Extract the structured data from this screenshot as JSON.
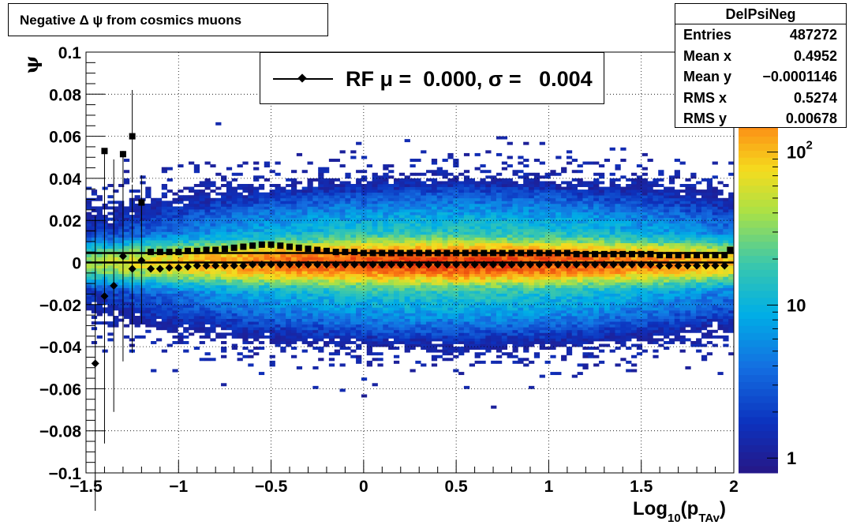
{
  "title_box": {
    "text": "Negative Δ ψ from cosmics muons"
  },
  "stats": {
    "name": "DelPsiNeg",
    "rows": [
      {
        "label": "Entries",
        "value": "487272"
      },
      {
        "label": "Mean x",
        "value": "0.4952"
      },
      {
        "label": "Mean y",
        "value": "−0.0001146"
      },
      {
        "label": "RMS x",
        "value": "0.5274"
      },
      {
        "label": "RMS y",
        "value": "0.00678"
      }
    ]
  },
  "legend": {
    "text": "RF μ =  0.000, σ =   0.004"
  },
  "chart_data": {
    "type": "heatmap",
    "xlabel": "Log",
    "xlabel_sub": "10",
    "xlabel_paren_open": "(p",
    "xlabel_sub2": "TAv",
    "xlabel_paren_close": ")",
    "ylabel": "ψ",
    "xlim": [
      -1.5,
      2
    ],
    "ylim": [
      -0.1,
      0.1
    ],
    "x_ticks": [
      -1.5,
      -1,
      -0.5,
      0,
      0.5,
      1,
      1.5,
      2
    ],
    "x_tick_labels": [
      "−1.5",
      "−1",
      "−0.5",
      "0",
      "0.5",
      "1",
      "1.5",
      "2"
    ],
    "y_ticks": [
      -0.1,
      -0.08,
      -0.06,
      -0.04,
      -0.02,
      0,
      0.02,
      0.04,
      0.06,
      0.08,
      0.1
    ],
    "y_tick_labels": [
      "−0.1",
      "−0.08",
      "−0.06",
      "−0.04",
      "−0.02",
      "0",
      "0.02",
      "0.04",
      "0.06",
      "0.08",
      "0.1"
    ],
    "grid": true,
    "log_z": true,
    "zlim": [
      0.8,
      450
    ],
    "z_ticks": [
      1,
      10,
      100
    ],
    "z_tick_labels": [
      {
        "base": "1",
        "exp": ""
      },
      {
        "base": "10",
        "exp": ""
      },
      {
        "base": "10",
        "exp": "2"
      }
    ],
    "heatmap_profile": {
      "x_center": 0.5,
      "x_width": 0.95,
      "peak_counts": 320,
      "y_sigma_core": 0.0045,
      "y_sigma_tail": 0.016,
      "tail_fraction": 0.07
    },
    "series": [
      {
        "name": "RF",
        "marker": "diamond",
        "x": [
          -1.45,
          -1.4,
          -1.35,
          -1.3,
          -1.25,
          -1.2,
          -1.15,
          -1.1,
          -1.05,
          -1.0,
          -0.95,
          -0.9,
          -0.85,
          -0.8,
          -0.75,
          -0.7,
          -0.65,
          -0.6,
          -0.55,
          -0.5,
          -0.45,
          -0.4,
          -0.35,
          -0.3,
          -0.25,
          -0.2,
          -0.15,
          -0.1,
          -0.05,
          0.0,
          0.05,
          0.1,
          0.15,
          0.2,
          0.25,
          0.3,
          0.35,
          0.4,
          0.45,
          0.5,
          0.55,
          0.6,
          0.65,
          0.7,
          0.75,
          0.8,
          0.85,
          0.9,
          0.95,
          1.0,
          1.05,
          1.1,
          1.15,
          1.2,
          1.25,
          1.3,
          1.35,
          1.4,
          1.45,
          1.5,
          1.55,
          1.6,
          1.65,
          1.7,
          1.75,
          1.8,
          1.85,
          1.9,
          1.95
        ],
        "y": [
          -0.048,
          -0.016,
          -0.011,
          0.003,
          -0.003,
          0.001,
          -0.003,
          -0.003,
          -0.0025,
          -0.0025,
          -0.002,
          -0.0015,
          -0.0015,
          -0.0015,
          -0.0015,
          -0.0015,
          -0.0015,
          -0.001,
          -0.001,
          -0.001,
          -0.001,
          -0.001,
          -0.001,
          -0.001,
          -0.001,
          -0.001,
          -0.001,
          -0.001,
          -0.001,
          -0.001,
          -0.001,
          -0.001,
          -0.001,
          -0.001,
          -0.001,
          -0.001,
          -0.001,
          -0.001,
          -0.001,
          -0.001,
          -0.001,
          -0.001,
          -0.001,
          -0.001,
          -0.001,
          -0.001,
          -0.001,
          -0.001,
          -0.001,
          -0.001,
          -0.001,
          -0.001,
          -0.001,
          -0.001,
          -0.001,
          -0.001,
          -0.001,
          -0.001,
          -0.001,
          -0.001,
          -0.001,
          -0.0015,
          -0.0015,
          -0.0015,
          -0.0015,
          -0.0015,
          -0.0015,
          -0.0015,
          -0.0015
        ],
        "yerr": [
          0.07,
          0.07,
          0.06,
          0.05,
          0.04,
          0.03,
          0,
          0,
          0,
          0,
          0,
          0,
          0,
          0,
          0,
          0,
          0,
          0,
          0,
          0,
          0,
          0,
          0,
          0,
          0,
          0,
          0,
          0,
          0,
          0,
          0,
          0,
          0,
          0,
          0,
          0,
          0,
          0,
          0,
          0,
          0,
          0,
          0,
          0,
          0,
          0,
          0,
          0,
          0,
          0,
          0,
          0,
          0,
          0,
          0,
          0,
          0,
          0,
          0,
          0,
          0,
          0,
          0,
          0,
          0,
          0,
          0,
          0,
          0
        ]
      },
      {
        "name": "sigma",
        "marker": "square",
        "x": [
          -1.4,
          -1.3,
          -1.25,
          -1.2,
          -1.15,
          -1.1,
          -1.05,
          -1.0,
          -0.95,
          -0.9,
          -0.85,
          -0.8,
          -0.75,
          -0.7,
          -0.65,
          -0.6,
          -0.55,
          -0.5,
          -0.45,
          -0.4,
          -0.35,
          -0.3,
          -0.25,
          -0.2,
          -0.15,
          -0.1,
          -0.05,
          0.0,
          0.05,
          0.1,
          0.15,
          0.2,
          0.25,
          0.3,
          0.35,
          0.4,
          0.45,
          0.5,
          0.55,
          0.6,
          0.65,
          0.7,
          0.75,
          0.8,
          0.85,
          0.9,
          0.95,
          1.0,
          1.05,
          1.1,
          1.15,
          1.2,
          1.25,
          1.3,
          1.35,
          1.4,
          1.45,
          1.5,
          1.55,
          1.6,
          1.65,
          1.7,
          1.75,
          1.8,
          1.85,
          1.9,
          1.95,
          1.98
        ],
        "y": [
          0.053,
          0.0515,
          0.06,
          0.0285,
          0.005,
          0.005,
          0.005,
          0.005,
          0.0055,
          0.0055,
          0.006,
          0.006,
          0.0065,
          0.007,
          0.0075,
          0.008,
          0.0085,
          0.0085,
          0.008,
          0.0075,
          0.007,
          0.0065,
          0.006,
          0.0055,
          0.005,
          0.005,
          0.005,
          0.0045,
          0.0045,
          0.0045,
          0.0045,
          0.0045,
          0.0045,
          0.0045,
          0.0045,
          0.0045,
          0.0045,
          0.0045,
          0.0045,
          0.0045,
          0.0045,
          0.0045,
          0.0045,
          0.0045,
          0.0045,
          0.0045,
          0.0045,
          0.0045,
          0.0045,
          0.0045,
          0.004,
          0.004,
          0.004,
          0.004,
          0.004,
          0.004,
          0.004,
          0.004,
          0.004,
          0.0035,
          0.0035,
          0.0035,
          0.0035,
          0.0035,
          0.0035,
          0.0035,
          0.0035,
          0.006
        ],
        "yerr": [
          0,
          0,
          0.022,
          0.013,
          0,
          0,
          0,
          0,
          0,
          0,
          0,
          0,
          0,
          0,
          0,
          0,
          0,
          0,
          0,
          0,
          0,
          0,
          0,
          0,
          0,
          0,
          0,
          0,
          0,
          0,
          0,
          0,
          0,
          0,
          0,
          0,
          0,
          0,
          0,
          0,
          0,
          0,
          0,
          0,
          0,
          0,
          0,
          0,
          0,
          0,
          0,
          0,
          0,
          0,
          0,
          0,
          0,
          0,
          0,
          0,
          0,
          0,
          0,
          0,
          0,
          0,
          0,
          0
        ]
      }
    ],
    "lines": [
      {
        "name": "mean",
        "y": 0.0
      },
      {
        "name": "sigma-level",
        "y": 0.0045
      }
    ]
  }
}
